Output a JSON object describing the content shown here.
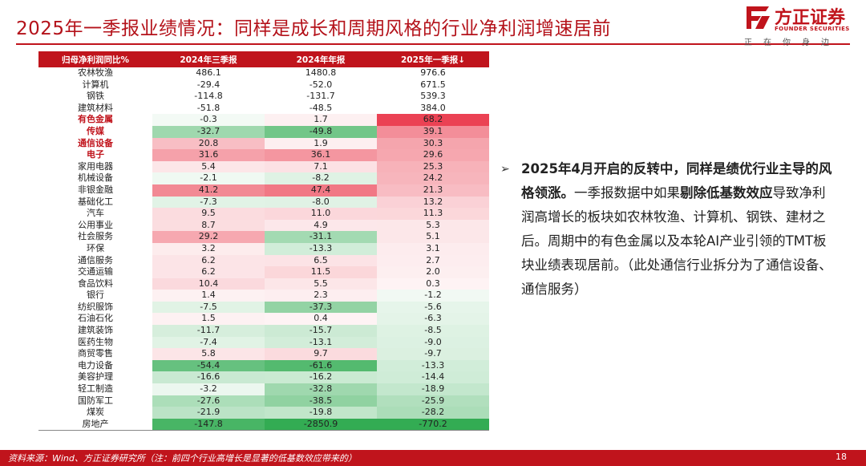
{
  "title": "2025年一季报业绩情况：同样是成长和周期风格的行业净利润增速居前",
  "logo": {
    "name": "方正证券",
    "english": "FOUNDER SECURITIES",
    "slogan": "正在你身边"
  },
  "table": {
    "headers": [
      "归母净利润同比%",
      "2024年三季报",
      "2024年年报",
      "2025年一季报↓"
    ],
    "rows": [
      {
        "industry": "农林牧渔",
        "q3_2024": "486.1",
        "annual_2024": "1480.8",
        "q1_2025": "976.6",
        "highlight": false
      },
      {
        "industry": "计算机",
        "q3_2024": "-29.4",
        "annual_2024": "-52.0",
        "q1_2025": "671.5",
        "highlight": false
      },
      {
        "industry": "钢铁",
        "q3_2024": "-114.8",
        "annual_2024": "-131.7",
        "q1_2025": "539.3",
        "highlight": false
      },
      {
        "industry": "建筑材料",
        "q3_2024": "-51.8",
        "annual_2024": "-48.5",
        "q1_2025": "384.0",
        "highlight": false
      },
      {
        "industry": "有色金属",
        "q3_2024": "-0.3",
        "annual_2024": "1.7",
        "q1_2025": "68.2",
        "highlight": true
      },
      {
        "industry": "传媒",
        "q3_2024": "-32.7",
        "annual_2024": "-49.8",
        "q1_2025": "39.1",
        "highlight": true
      },
      {
        "industry": "通信设备",
        "q3_2024": "20.8",
        "annual_2024": "1.9",
        "q1_2025": "30.3",
        "highlight": true
      },
      {
        "industry": "电子",
        "q3_2024": "31.6",
        "annual_2024": "36.1",
        "q1_2025": "29.6",
        "highlight": true
      },
      {
        "industry": "家用电器",
        "q3_2024": "5.4",
        "annual_2024": "7.1",
        "q1_2025": "25.3",
        "highlight": false
      },
      {
        "industry": "机械设备",
        "q3_2024": "-2.1",
        "annual_2024": "-8.2",
        "q1_2025": "24.2",
        "highlight": false
      },
      {
        "industry": "非银金融",
        "q3_2024": "41.2",
        "annual_2024": "47.4",
        "q1_2025": "21.3",
        "highlight": false
      },
      {
        "industry": "基础化工",
        "q3_2024": "-7.3",
        "annual_2024": "-8.0",
        "q1_2025": "13.2",
        "highlight": false
      },
      {
        "industry": "汽车",
        "q3_2024": "9.5",
        "annual_2024": "11.0",
        "q1_2025": "11.3",
        "highlight": false
      },
      {
        "industry": "公用事业",
        "q3_2024": "8.7",
        "annual_2024": "4.9",
        "q1_2025": "5.3",
        "highlight": false
      },
      {
        "industry": "社会服务",
        "q3_2024": "29.2",
        "annual_2024": "-31.1",
        "q1_2025": "5.1",
        "highlight": false
      },
      {
        "industry": "环保",
        "q3_2024": "3.2",
        "annual_2024": "-13.3",
        "q1_2025": "3.1",
        "highlight": false
      },
      {
        "industry": "通信服务",
        "q3_2024": "6.2",
        "annual_2024": "6.5",
        "q1_2025": "2.7",
        "highlight": false
      },
      {
        "industry": "交通运输",
        "q3_2024": "6.2",
        "annual_2024": "11.5",
        "q1_2025": "2.0",
        "highlight": false
      },
      {
        "industry": "食品饮料",
        "q3_2024": "10.4",
        "annual_2024": "5.5",
        "q1_2025": "0.3",
        "highlight": false
      },
      {
        "industry": "银行",
        "q3_2024": "1.4",
        "annual_2024": "2.3",
        "q1_2025": "-1.2",
        "highlight": false
      },
      {
        "industry": "纺织服饰",
        "q3_2024": "-7.5",
        "annual_2024": "-37.3",
        "q1_2025": "-5.6",
        "highlight": false
      },
      {
        "industry": "石油石化",
        "q3_2024": "1.5",
        "annual_2024": "0.4",
        "q1_2025": "-6.3",
        "highlight": false
      },
      {
        "industry": "建筑装饰",
        "q3_2024": "-11.7",
        "annual_2024": "-15.7",
        "q1_2025": "-8.5",
        "highlight": false
      },
      {
        "industry": "医药生物",
        "q3_2024": "-7.4",
        "annual_2024": "-13.1",
        "q1_2025": "-9.0",
        "highlight": false
      },
      {
        "industry": "商贸零售",
        "q3_2024": "5.8",
        "annual_2024": "9.7",
        "q1_2025": "-9.7",
        "highlight": false
      },
      {
        "industry": "电力设备",
        "q3_2024": "-54.4",
        "annual_2024": "-61.6",
        "q1_2025": "-13.3",
        "highlight": false
      },
      {
        "industry": "美容护理",
        "q3_2024": "-16.6",
        "annual_2024": "-16.2",
        "q1_2025": "-14.4",
        "highlight": false
      },
      {
        "industry": "轻工制造",
        "q3_2024": "-3.2",
        "annual_2024": "-32.8",
        "q1_2025": "-18.9",
        "highlight": false
      },
      {
        "industry": "国防军工",
        "q3_2024": "-27.6",
        "annual_2024": "-38.5",
        "q1_2025": "-25.9",
        "highlight": false
      },
      {
        "industry": "煤炭",
        "q3_2024": "-21.9",
        "annual_2024": "-19.8",
        "q1_2025": "-28.2",
        "highlight": false
      },
      {
        "industry": "房地产",
        "q3_2024": "-147.8",
        "annual_2024": "-2850.9",
        "q1_2025": "-770.2",
        "highlight": false
      }
    ]
  },
  "colors": {
    "brand_red": "#c0141c",
    "heat_positive": "#e8283c",
    "heat_negative": "#28a84a"
  },
  "commentary": {
    "bullet_symbol": "➢",
    "seg1": "2025年4月开启的反转中，同样是绩优行业主导的风格领涨。",
    "seg2": "一季报数据中如果",
    "seg3": "剔除低基数效应",
    "seg4": "导致净利润高增长的板块如农林牧渔、计算机、钢铁、建材之后。周期中的有色金属以及本轮AI产业引领的TMT板块业绩表现居前。（此处通信行业拆分为了通信设备、通信服务）"
  },
  "footer": {
    "source": "资料来源：Wind、方正证券研究所（注：前四个行业高增长是显著的低基数效应带来的）",
    "page": "18"
  }
}
